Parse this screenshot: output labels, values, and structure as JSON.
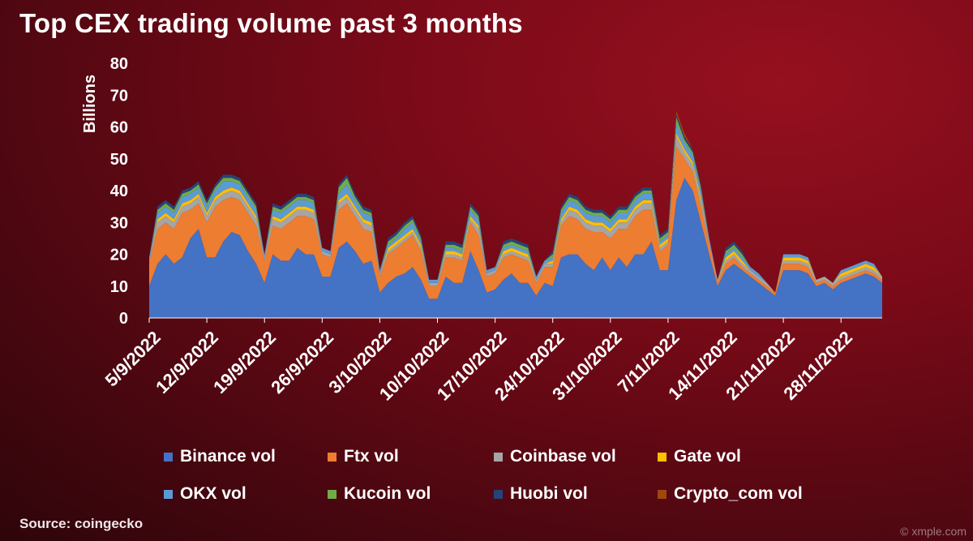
{
  "chart_data": {
    "type": "area",
    "stacked": true,
    "title": "Top CEX trading volume past 3 months",
    "xlabel": "",
    "ylabel": "Billions",
    "ylim": [
      0,
      80
    ],
    "yticks": [
      0,
      10,
      20,
      30,
      40,
      50,
      60,
      70,
      80
    ],
    "xticks": [
      "5/9/2022",
      "12/9/2022",
      "19/9/2022",
      "26/9/2022",
      "3/10/2022",
      "10/10/2022",
      "17/10/2022",
      "24/10/2022",
      "31/10/2022",
      "7/11/2022",
      "14/11/2022",
      "21/11/2022",
      "28/11/2022"
    ],
    "legend_position": "bottom",
    "series": [
      {
        "name": "Binance vol",
        "color": "#4472c4",
        "values": [
          10,
          17,
          20,
          17,
          19,
          25,
          28,
          19,
          19,
          24,
          27,
          26,
          21,
          17,
          11,
          20,
          18,
          18,
          22,
          20,
          20,
          13,
          13,
          22,
          24,
          21,
          17,
          18,
          8,
          11,
          13,
          14,
          16,
          12,
          6,
          6,
          13,
          11,
          11,
          21,
          15,
          8,
          9,
          12,
          14,
          11,
          11,
          7,
          11,
          10,
          19,
          20,
          20,
          17,
          15,
          19,
          15,
          19,
          16,
          20,
          20,
          24,
          15,
          15,
          37,
          44,
          40,
          30,
          20,
          10,
          15,
          17,
          15,
          13,
          11,
          9,
          7,
          15,
          15,
          15,
          14,
          10,
          11,
          9,
          11,
          12,
          13,
          14,
          13,
          11
        ]
      },
      {
        "name": "Ftx vol",
        "color": "#ed7d31",
        "values": [
          7,
          11,
          10,
          11,
          14,
          9,
          8,
          11,
          16,
          13,
          11,
          11,
          12,
          12,
          7,
          9,
          10,
          12,
          10,
          12,
          11,
          7,
          6,
          12,
          12,
          11,
          11,
          9,
          5,
          9,
          9,
          10,
          10,
          9,
          4,
          4,
          6,
          8,
          7,
          9,
          11,
          5,
          5,
          7,
          6,
          8,
          7,
          4,
          5,
          6,
          10,
          12,
          11,
          11,
          12,
          8,
          10,
          9,
          12,
          12,
          14,
          10,
          6,
          8,
          17,
          6,
          6,
          5,
          3,
          1,
          2,
          2,
          1,
          1,
          1,
          1,
          1,
          2,
          2,
          2,
          2,
          1,
          1,
          1,
          1,
          1,
          1,
          1,
          1,
          1
        ]
      },
      {
        "name": "Coinbase vol",
        "color": "#a5a5a5",
        "values": [
          1,
          2,
          2,
          2,
          2,
          2,
          2,
          2,
          2,
          2,
          2,
          2,
          2,
          2,
          1,
          2,
          2,
          2,
          2,
          2,
          2,
          1,
          1,
          2,
          2,
          2,
          2,
          2,
          1,
          1,
          1,
          1,
          1,
          1,
          1,
          1,
          1,
          1,
          1,
          1,
          2,
          1,
          1,
          1,
          1,
          1,
          1,
          1,
          1,
          1,
          1,
          2,
          2,
          2,
          2,
          2,
          2,
          2,
          2,
          2,
          2,
          2,
          1,
          1,
          3,
          2,
          2,
          2,
          1,
          1,
          1,
          1,
          1,
          1,
          1,
          1,
          0,
          1,
          1,
          1,
          1,
          1,
          1,
          1,
          1,
          1,
          1,
          1,
          1,
          1
        ]
      },
      {
        "name": "Gate vol",
        "color": "#ffc000",
        "values": [
          0,
          1,
          1,
          1,
          1,
          1,
          1,
          1,
          1,
          1,
          1,
          1,
          1,
          1,
          0,
          1,
          1,
          1,
          1,
          1,
          1,
          0,
          0,
          1,
          1,
          1,
          1,
          1,
          0,
          1,
          1,
          1,
          1,
          1,
          0,
          0,
          1,
          1,
          1,
          1,
          1,
          0,
          0,
          1,
          1,
          1,
          1,
          0,
          0,
          1,
          1,
          1,
          1,
          1,
          1,
          1,
          1,
          1,
          1,
          1,
          1,
          1,
          1,
          1,
          1,
          1,
          1,
          1,
          0,
          0,
          1,
          1,
          1,
          0,
          0,
          0,
          0,
          1,
          1,
          1,
          1,
          0,
          0,
          0,
          1,
          1,
          1,
          1,
          1,
          0
        ]
      },
      {
        "name": "OKX vol",
        "color": "#5b9bd5",
        "values": [
          1,
          2,
          2,
          2,
          2,
          2,
          2,
          2,
          2,
          3,
          2,
          2,
          2,
          2,
          1,
          2,
          2,
          2,
          2,
          2,
          2,
          1,
          1,
          2,
          3,
          2,
          2,
          2,
          1,
          1,
          1,
          2,
          2,
          1,
          1,
          1,
          1,
          1,
          1,
          2,
          2,
          1,
          1,
          1,
          1,
          1,
          1,
          1,
          1,
          1,
          2,
          2,
          2,
          2,
          2,
          2,
          2,
          2,
          2,
          2,
          2,
          2,
          1,
          1,
          3,
          2,
          2,
          2,
          1,
          0,
          1,
          1,
          1,
          1,
          1,
          0,
          0,
          1,
          1,
          1,
          1,
          0,
          0,
          0,
          1,
          1,
          1,
          1,
          1,
          0
        ]
      },
      {
        "name": "Kucoin vol",
        "color": "#70ad47",
        "values": [
          0,
          1,
          1,
          1,
          1,
          1,
          1,
          1,
          1,
          1,
          1,
          1,
          1,
          1,
          0,
          1,
          1,
          1,
          1,
          1,
          1,
          0,
          0,
          2,
          2,
          1,
          1,
          1,
          0,
          1,
          1,
          1,
          1,
          1,
          0,
          0,
          1,
          1,
          1,
          1,
          1,
          0,
          0,
          1,
          1,
          1,
          1,
          0,
          0,
          1,
          1,
          1,
          1,
          1,
          1,
          1,
          1,
          1,
          1,
          1,
          1,
          1,
          1,
          1,
          2,
          1,
          1,
          1,
          0,
          0,
          1,
          1,
          1,
          0,
          0,
          0,
          0,
          0,
          0,
          0,
          0,
          0,
          0,
          0,
          0,
          0,
          0,
          0,
          0,
          0
        ]
      },
      {
        "name": "Huobi vol",
        "color": "#264478",
        "values": [
          0,
          1,
          1,
          1,
          1,
          1,
          1,
          1,
          1,
          1,
          1,
          1,
          1,
          1,
          0,
          1,
          1,
          1,
          1,
          1,
          1,
          0,
          0,
          1,
          1,
          1,
          1,
          1,
          0,
          1,
          1,
          1,
          1,
          1,
          0,
          0,
          1,
          1,
          1,
          1,
          1,
          0,
          0,
          1,
          1,
          1,
          1,
          0,
          0,
          1,
          1,
          1,
          1,
          1,
          1,
          1,
          1,
          1,
          1,
          1,
          1,
          1,
          1,
          1,
          1,
          1,
          1,
          1,
          0,
          0,
          1,
          1,
          1,
          0,
          0,
          0,
          0,
          0,
          0,
          0,
          0,
          0,
          0,
          0,
          0,
          0,
          0,
          0,
          0,
          0
        ]
      },
      {
        "name": "Crypto_com vol",
        "color": "#9e480e",
        "values": [
          0,
          0,
          0,
          0,
          0,
          0,
          0,
          0,
          0,
          0,
          0,
          0,
          0,
          0,
          0,
          0,
          0,
          0,
          0,
          0,
          0,
          0,
          0,
          0,
          0,
          0,
          0,
          0,
          0,
          0,
          0,
          0,
          0,
          0,
          0,
          0,
          0,
          0,
          0,
          0,
          0,
          0,
          0,
          0,
          0,
          0,
          0,
          0,
          0,
          0,
          0,
          0,
          0,
          0,
          0,
          0,
          0,
          0,
          0,
          0,
          0,
          0,
          0,
          0,
          1,
          1,
          0,
          0,
          0,
          0,
          0,
          0,
          0,
          0,
          0,
          0,
          0,
          0,
          0,
          0,
          0,
          0,
          0,
          0,
          0,
          0,
          0,
          0,
          0,
          0
        ]
      }
    ]
  },
  "source": "Source: coingecko",
  "watermark": "© xmple.com"
}
